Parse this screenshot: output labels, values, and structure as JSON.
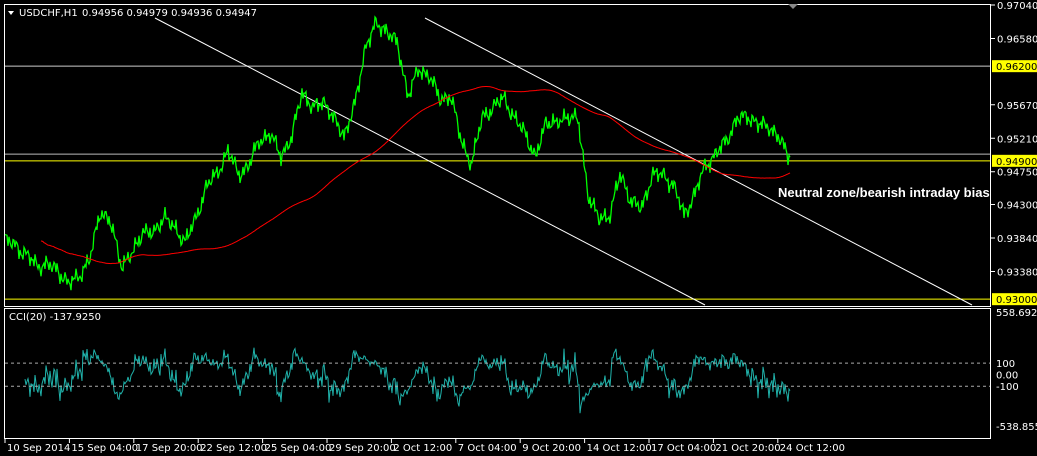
{
  "chart_data": {
    "type": "line",
    "title": "USDCHF,H1",
    "ohlc": [
      "0.94956",
      "0.94979",
      "0.94936",
      "0.94947"
    ],
    "price_ticks": [
      "0.97040",
      "0.96580",
      "0.95670",
      "0.95210",
      "0.94750",
      "0.94300",
      "0.93840",
      "0.93380"
    ],
    "ylim": [
      0.9292,
      0.9704
    ],
    "x_ticks": [
      "10 Sep 2014",
      "15 Sep 04:00",
      "17 Sep 20:00",
      "22 Sep 12:00",
      "25 Sep 04:00",
      "29 Sep 20:00",
      "2 Oct 12:00",
      "7 Oct 04:00",
      "9 Oct 20:00",
      "14 Oct 12:00",
      "17 Oct 04:00",
      "21 Oct 20:00",
      "24 Oct 12:00"
    ],
    "series": [
      {
        "color": "#00ff00",
        "values": [
          0.9381,
          0.9374,
          0.9361,
          0.9347,
          0.9347,
          0.934,
          0.932,
          0.9333,
          0.9354,
          0.9423,
          0.9402,
          0.9347,
          0.9361,
          0.9395,
          0.9388,
          0.9416,
          0.9395,
          0.9381,
          0.9409,
          0.9457,
          0.9471,
          0.9505,
          0.9471,
          0.9484,
          0.9519,
          0.9526,
          0.9498,
          0.9519,
          0.9587,
          0.956,
          0.9574,
          0.9546,
          0.9526,
          0.9567,
          0.9649,
          0.9677,
          0.967,
          0.9649,
          0.958,
          0.9615,
          0.9608,
          0.9574,
          0.958,
          0.9519,
          0.9484,
          0.9553,
          0.956,
          0.958,
          0.9546,
          0.9532,
          0.9491,
          0.9546,
          0.9539,
          0.9553,
          0.9546,
          0.9443,
          0.9409,
          0.9416,
          0.9471,
          0.9436,
          0.9423,
          0.9471,
          0.9471,
          0.9457,
          0.9416,
          0.9443,
          0.9484,
          0.9498,
          0.9519,
          0.9546,
          0.9553,
          0.9539,
          0.9539,
          0.9519,
          0.9495
        ]
      },
      {
        "color": "#ff0000",
        "type": "moving-average"
      }
    ],
    "levels": [
      {
        "price": 0.962,
        "label": "0.96200",
        "color": "#ffff00"
      },
      {
        "price": 0.949,
        "label": "0.94900",
        "color": "#ffff00"
      },
      {
        "price": 0.93,
        "label": "0.93000",
        "color": "#ffff00"
      }
    ],
    "annotation": "Neutral zone/bearish intraday bias",
    "indicator": {
      "title": "CCI(20) -137.9250",
      "color": "#20b2aa",
      "ylim": [
        -538.8553,
        558.6924
      ],
      "ticks": [
        "558.6924",
        "100",
        "0.00",
        "-100",
        "-538.8553"
      ],
      "levels": [
        100,
        -100
      ]
    }
  }
}
